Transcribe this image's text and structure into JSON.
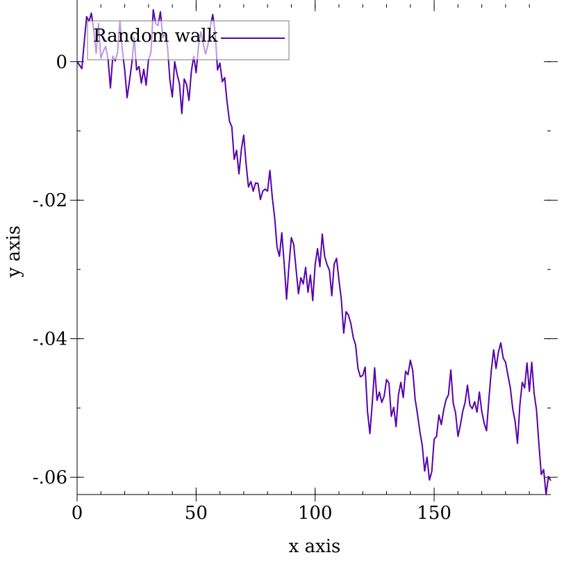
{
  "chart_data": {
    "type": "line",
    "title": "",
    "xlabel": "x axis",
    "ylabel": "y axis",
    "xlim": [
      0,
      199
    ],
    "ylim": [
      -0.0625,
      0.0083
    ],
    "x_ticks": [
      {
        "value": 0,
        "label": "0"
      },
      {
        "value": 50,
        "label": "50"
      },
      {
        "value": 100,
        "label": "100"
      },
      {
        "value": 150,
        "label": "150"
      }
    ],
    "x_minor_step": 10,
    "y_ticks": [
      {
        "value": 0,
        "label": "0"
      },
      {
        "value": -0.02,
        "label": "-.02"
      },
      {
        "value": -0.04,
        "label": "-.04"
      },
      {
        "value": -0.06,
        "label": "-.06"
      }
    ],
    "y_minor_step": 0.01,
    "grid": false,
    "legend": {
      "position": "top-left",
      "entries": [
        {
          "label": "Random walk",
          "color": "#5500aa"
        }
      ]
    },
    "series": [
      {
        "name": "Random walk",
        "color": "#5500aa",
        "x_start": 0,
        "x_step": 1,
        "values": [
          0,
          -0.0005,
          -0.001,
          0.0028,
          0.0065,
          0.0058,
          0.007,
          0.0045,
          0.0012,
          0.0055,
          0.0005,
          0.0015,
          0.0022,
          0.0004,
          -0.0038,
          0.0008,
          0.0001,
          0.0013,
          0.0058,
          0.0017,
          -0.0012,
          -0.0052,
          -0.0028,
          -0.0002,
          0.0035,
          -0.0012,
          -0.0007,
          -0.0031,
          -0.0011,
          -0.0034,
          0.0003,
          0.0013,
          0.0075,
          0.0055,
          0.0052,
          0.0072,
          0.0035,
          0.0041,
          0.0021,
          -0.0027,
          -0.0051,
          0,
          -0.0018,
          -0.0032,
          -0.0075,
          -0.0025,
          -0.0033,
          -0.0056,
          -0.0014,
          0.0008,
          -0.0016,
          0.0023,
          0.0043,
          0.0026,
          0.0011,
          0.0025,
          0.0051,
          0.0068,
          0.0042,
          -0.0012,
          -0.0002,
          -0.0029,
          -0.0023,
          -0.0058,
          -0.0086,
          -0.0094,
          -0.0141,
          -0.0128,
          -0.0162,
          -0.0127,
          -0.0106,
          -0.0148,
          -0.0181,
          -0.0173,
          -0.0187,
          -0.0175,
          -0.0176,
          -0.0199,
          -0.0187,
          -0.0184,
          -0.0187,
          -0.0157,
          -0.0196,
          -0.0225,
          -0.0268,
          -0.0281,
          -0.0247,
          -0.0292,
          -0.0343,
          -0.0295,
          -0.0254,
          -0.0264,
          -0.03,
          -0.0335,
          -0.0312,
          -0.0321,
          -0.0297,
          -0.0333,
          -0.0308,
          -0.0345,
          -0.0293,
          -0.027,
          -0.0296,
          -0.0249,
          -0.0281,
          -0.0293,
          -0.0301,
          -0.0338,
          -0.0292,
          -0.0284,
          -0.0315,
          -0.0343,
          -0.0392,
          -0.0361,
          -0.0366,
          -0.0378,
          -0.0398,
          -0.0409,
          -0.0443,
          -0.0455,
          -0.0453,
          -0.0441,
          -0.0505,
          -0.0537,
          -0.0493,
          -0.0442,
          -0.0489,
          -0.0477,
          -0.0492,
          -0.0483,
          -0.0459,
          -0.0464,
          -0.0512,
          -0.0499,
          -0.0527,
          -0.0481,
          -0.0463,
          -0.0485,
          -0.0447,
          -0.0452,
          -0.0431,
          -0.0446,
          -0.0487,
          -0.0509,
          -0.0534,
          -0.0554,
          -0.0591,
          -0.0571,
          -0.0604,
          -0.0592,
          -0.0545,
          -0.0541,
          -0.051,
          -0.0524,
          -0.0503,
          -0.0488,
          -0.0481,
          -0.0445,
          -0.0493,
          -0.0507,
          -0.0541,
          -0.0525,
          -0.0505,
          -0.0492,
          -0.0467,
          -0.0496,
          -0.0501,
          -0.0491,
          -0.0506,
          -0.0477,
          -0.0505,
          -0.0522,
          -0.0533,
          -0.0487,
          -0.0446,
          -0.0416,
          -0.0443,
          -0.0419,
          -0.0406,
          -0.0428,
          -0.0434,
          -0.0453,
          -0.0471,
          -0.0501,
          -0.0519,
          -0.0551,
          -0.0496,
          -0.0463,
          -0.0471,
          -0.0435,
          -0.0476,
          -0.0434,
          -0.0479,
          -0.0503,
          -0.0552,
          -0.0596,
          -0.0589,
          -0.0625,
          -0.0599,
          -0.0605
        ]
      }
    ]
  }
}
